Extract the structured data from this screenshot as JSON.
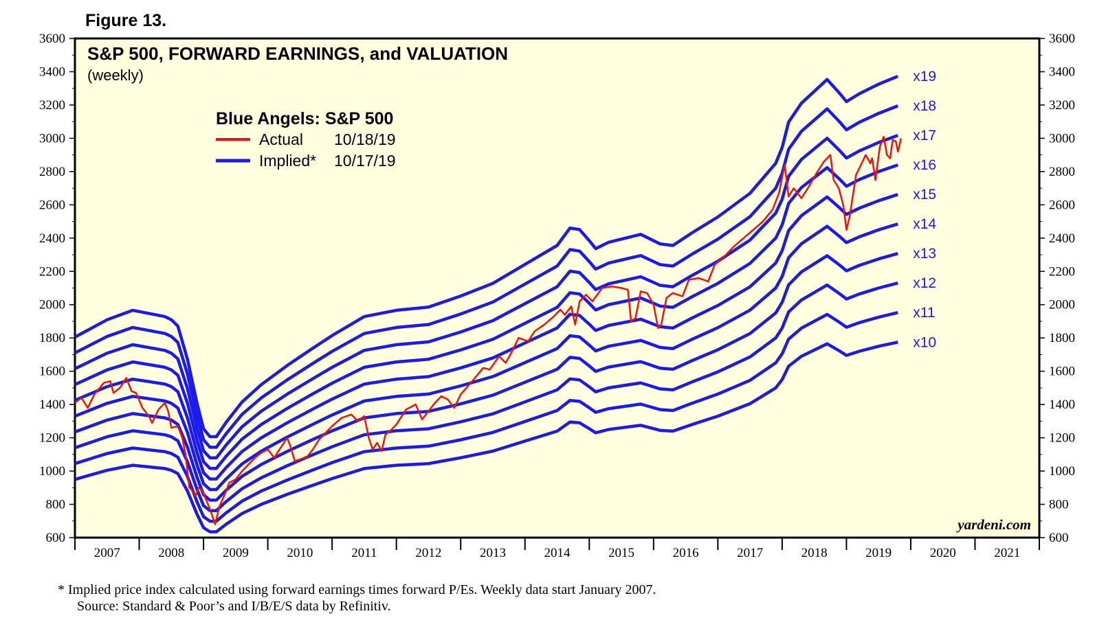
{
  "figure_label": "Figure 13.",
  "footnote": {
    "line1": "*  Implied price index calculated using forward earnings times forward P/Es. Weekly data start January 2007.",
    "line2": "Source: Standard & Poor’s and I/B/E/S data by Refinitiv."
  },
  "colors": {
    "actual": "#ee1111",
    "implied": "#1a1aee",
    "plot_bg": "#ffffe0",
    "frame": "#000000"
  },
  "chart_data": {
    "type": "line",
    "title": "S&P 500, FORWARD EARNINGS, and VALUATION",
    "subtitle": "(weekly)",
    "legend": {
      "title": "Blue Angels: S&P 500",
      "position": "top-left",
      "entries": [
        {
          "name": "Actual",
          "date": "10/18/19",
          "color": "#ee1111"
        },
        {
          "name": "Implied*",
          "date": "10/17/19",
          "color": "#1a1aee"
        }
      ]
    },
    "credit": "yardeni.com",
    "y_range": [
      600,
      3600
    ],
    "y_ticks": [
      "600",
      "800",
      "1000",
      "1200",
      "1400",
      "1600",
      "1800",
      "2000",
      "2200",
      "2400",
      "2600",
      "2800",
      "3000",
      "3200",
      "3400",
      "3600"
    ],
    "x_range": [
      2007,
      2022
    ],
    "x_tick_labels": [
      "2007",
      "2008",
      "2009",
      "2010",
      "2011",
      "2012",
      "2013",
      "2014",
      "2015",
      "2016",
      "2017",
      "2018",
      "2019",
      "2020",
      "2021"
    ],
    "grid": false,
    "forward_earnings_base": [
      [
        2007.0,
        95.0
      ],
      [
        2007.5,
        100.5
      ],
      [
        2007.9,
        103.5
      ],
      [
        2008.4,
        101.5
      ],
      [
        2008.5,
        100.5
      ],
      [
        2008.6,
        98.5
      ],
      [
        2008.75,
        88
      ],
      [
        2008.9,
        74
      ],
      [
        2009.0,
        66
      ],
      [
        2009.1,
        63.5
      ],
      [
        2009.2,
        63.5
      ],
      [
        2009.35,
        68
      ],
      [
        2009.6,
        74.5
      ],
      [
        2009.9,
        80
      ],
      [
        2010.3,
        86
      ],
      [
        2010.7,
        91.5
      ],
      [
        2011.0,
        95.5
      ],
      [
        2011.5,
        101.5
      ],
      [
        2012.0,
        103.5
      ],
      [
        2012.5,
        104.5
      ],
      [
        2013.0,
        108
      ],
      [
        2013.5,
        112
      ],
      [
        2014.0,
        118
      ],
      [
        2014.5,
        124
      ],
      [
        2014.7,
        129.5
      ],
      [
        2014.85,
        129
      ],
      [
        2015.0,
        125.5
      ],
      [
        2015.1,
        123
      ],
      [
        2015.3,
        125
      ],
      [
        2015.8,
        127.5
      ],
      [
        2016.1,
        124.5
      ],
      [
        2016.3,
        124
      ],
      [
        2016.6,
        128
      ],
      [
        2017.0,
        133
      ],
      [
        2017.5,
        140.5
      ],
      [
        2017.9,
        150
      ],
      [
        2018.0,
        155
      ],
      [
        2018.1,
        163
      ],
      [
        2018.3,
        169
      ],
      [
        2018.7,
        176.5
      ],
      [
        2018.9,
        172
      ],
      [
        2019.0,
        169.5
      ],
      [
        2019.2,
        172
      ],
      [
        2019.5,
        175
      ],
      [
        2019.8,
        177.5
      ]
    ],
    "series": [
      {
        "name": "x10",
        "multiple": 10
      },
      {
        "name": "x11",
        "multiple": 11
      },
      {
        "name": "x12",
        "multiple": 12
      },
      {
        "name": "x13",
        "multiple": 13
      },
      {
        "name": "x14",
        "multiple": 14
      },
      {
        "name": "x15",
        "multiple": 15
      },
      {
        "name": "x16",
        "multiple": 16
      },
      {
        "name": "x17",
        "multiple": 17
      },
      {
        "name": "x18",
        "multiple": 18
      },
      {
        "name": "x19",
        "multiple": 19
      }
    ],
    "actual": [
      [
        2007.0,
        1410
      ],
      [
        2007.1,
        1440
      ],
      [
        2007.2,
        1380
      ],
      [
        2007.3,
        1460
      ],
      [
        2007.45,
        1530
      ],
      [
        2007.55,
        1540
      ],
      [
        2007.6,
        1470
      ],
      [
        2007.7,
        1500
      ],
      [
        2007.8,
        1560
      ],
      [
        2007.88,
        1480
      ],
      [
        2007.95,
        1470
      ],
      [
        2008.05,
        1380
      ],
      [
        2008.15,
        1330
      ],
      [
        2008.2,
        1290
      ],
      [
        2008.3,
        1370
      ],
      [
        2008.4,
        1410
      ],
      [
        2008.45,
        1360
      ],
      [
        2008.5,
        1260
      ],
      [
        2008.6,
        1270
      ],
      [
        2008.67,
        1200
      ],
      [
        2008.72,
        1100
      ],
      [
        2008.78,
        900
      ],
      [
        2008.83,
        880
      ],
      [
        2008.88,
        850
      ],
      [
        2008.92,
        900
      ],
      [
        2008.97,
        890
      ],
      [
        2009.05,
        820
      ],
      [
        2009.12,
        750
      ],
      [
        2009.18,
        680
      ],
      [
        2009.25,
        790
      ],
      [
        2009.32,
        850
      ],
      [
        2009.4,
        930
      ],
      [
        2009.5,
        950
      ],
      [
        2009.6,
        1000
      ],
      [
        2009.7,
        1040
      ],
      [
        2009.8,
        1080
      ],
      [
        2009.9,
        1110
      ],
      [
        2010.0,
        1130
      ],
      [
        2010.1,
        1080
      ],
      [
        2010.2,
        1140
      ],
      [
        2010.3,
        1200
      ],
      [
        2010.35,
        1150
      ],
      [
        2010.42,
        1060
      ],
      [
        2010.5,
        1070
      ],
      [
        2010.6,
        1080
      ],
      [
        2010.7,
        1130
      ],
      [
        2010.8,
        1190
      ],
      [
        2010.9,
        1230
      ],
      [
        2011.0,
        1270
      ],
      [
        2011.15,
        1320
      ],
      [
        2011.3,
        1340
      ],
      [
        2011.4,
        1300
      ],
      [
        2011.5,
        1330
      ],
      [
        2011.57,
        1200
      ],
      [
        2011.63,
        1130
      ],
      [
        2011.7,
        1170
      ],
      [
        2011.77,
        1120
      ],
      [
        2011.83,
        1220
      ],
      [
        2011.9,
        1240
      ],
      [
        2012.0,
        1280
      ],
      [
        2012.15,
        1370
      ],
      [
        2012.3,
        1400
      ],
      [
        2012.4,
        1310
      ],
      [
        2012.5,
        1360
      ],
      [
        2012.6,
        1410
      ],
      [
        2012.7,
        1450
      ],
      [
        2012.8,
        1430
      ],
      [
        2012.9,
        1380
      ],
      [
        2013.0,
        1460
      ],
      [
        2013.2,
        1550
      ],
      [
        2013.35,
        1620
      ],
      [
        2013.45,
        1610
      ],
      [
        2013.6,
        1690
      ],
      [
        2013.7,
        1650
      ],
      [
        2013.8,
        1720
      ],
      [
        2013.9,
        1800
      ],
      [
        2014.05,
        1780
      ],
      [
        2014.15,
        1840
      ],
      [
        2014.3,
        1880
      ],
      [
        2014.45,
        1930
      ],
      [
        2014.55,
        1970
      ],
      [
        2014.62,
        1940
      ],
      [
        2014.72,
        1990
      ],
      [
        2014.78,
        1880
      ],
      [
        2014.85,
        2020
      ],
      [
        2014.95,
        2060
      ],
      [
        2015.05,
        2020
      ],
      [
        2015.2,
        2100
      ],
      [
        2015.35,
        2110
      ],
      [
        2015.5,
        2100
      ],
      [
        2015.6,
        2090
      ],
      [
        2015.65,
        1900
      ],
      [
        2015.72,
        1920
      ],
      [
        2015.8,
        2080
      ],
      [
        2015.9,
        2070
      ],
      [
        2016.0,
        2000
      ],
      [
        2016.07,
        1860
      ],
      [
        2016.12,
        1880
      ],
      [
        2016.2,
        2040
      ],
      [
        2016.3,
        2070
      ],
      [
        2016.45,
        2050
      ],
      [
        2016.55,
        2150
      ],
      [
        2016.7,
        2160
      ],
      [
        2016.85,
        2140
      ],
      [
        2016.95,
        2240
      ],
      [
        2017.1,
        2290
      ],
      [
        2017.25,
        2350
      ],
      [
        2017.4,
        2400
      ],
      [
        2017.55,
        2450
      ],
      [
        2017.7,
        2500
      ],
      [
        2017.85,
        2570
      ],
      [
        2017.95,
        2670
      ],
      [
        2018.04,
        2840
      ],
      [
        2018.1,
        2650
      ],
      [
        2018.18,
        2700
      ],
      [
        2018.3,
        2640
      ],
      [
        2018.4,
        2700
      ],
      [
        2018.55,
        2800
      ],
      [
        2018.65,
        2860
      ],
      [
        2018.75,
        2900
      ],
      [
        2018.8,
        2750
      ],
      [
        2018.88,
        2700
      ],
      [
        2018.95,
        2600
      ],
      [
        2019.0,
        2450
      ],
      [
        2019.05,
        2530
      ],
      [
        2019.15,
        2780
      ],
      [
        2019.3,
        2900
      ],
      [
        2019.37,
        2850
      ],
      [
        2019.4,
        2880
      ],
      [
        2019.45,
        2750
      ],
      [
        2019.52,
        2950
      ],
      [
        2019.58,
        3010
      ],
      [
        2019.63,
        2900
      ],
      [
        2019.68,
        2880
      ],
      [
        2019.72,
        2990
      ],
      [
        2019.77,
        2980
      ],
      [
        2019.8,
        2920
      ],
      [
        2019.85,
        3000
      ]
    ]
  }
}
